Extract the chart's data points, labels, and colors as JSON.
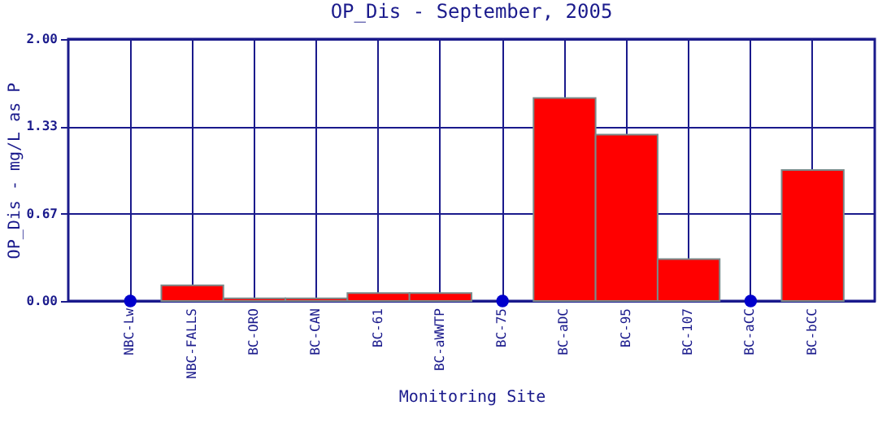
{
  "chart_data": {
    "type": "bar",
    "title": "OP_Dis - September, 2005",
    "xlabel": "Monitoring Site",
    "ylabel": "OP_Dis - mg/L as P",
    "categories": [
      "NBC-Lw",
      "NBC-FALLS",
      "BC-ORO",
      "BC-CAN",
      "BC-61",
      "BC-aWWTP",
      "BC-75",
      "BC-aDC",
      "BC-95",
      "BC-107",
      "BC-aCC",
      "BC-bCC"
    ],
    "series": [
      {
        "color": "#ff0000",
        "values": [
          null,
          0.12,
          0.02,
          0.02,
          0.06,
          0.06,
          null,
          1.55,
          1.27,
          0.32,
          null,
          1.0
        ]
      },
      {
        "type": "scatter",
        "color": "#0000cc",
        "values": [
          0,
          null,
          null,
          null,
          null,
          null,
          0,
          null,
          null,
          null,
          0,
          null
        ]
      }
    ],
    "ylim": [
      0,
      2
    ],
    "yticks": [
      {
        "value": 0,
        "label": "0.00"
      },
      {
        "value": 0.667,
        "label": "0.67"
      },
      {
        "value": 1.333,
        "label": "1.33"
      },
      {
        "value": 2,
        "label": "2.00"
      }
    ],
    "grid": true,
    "marker": "circle"
  }
}
